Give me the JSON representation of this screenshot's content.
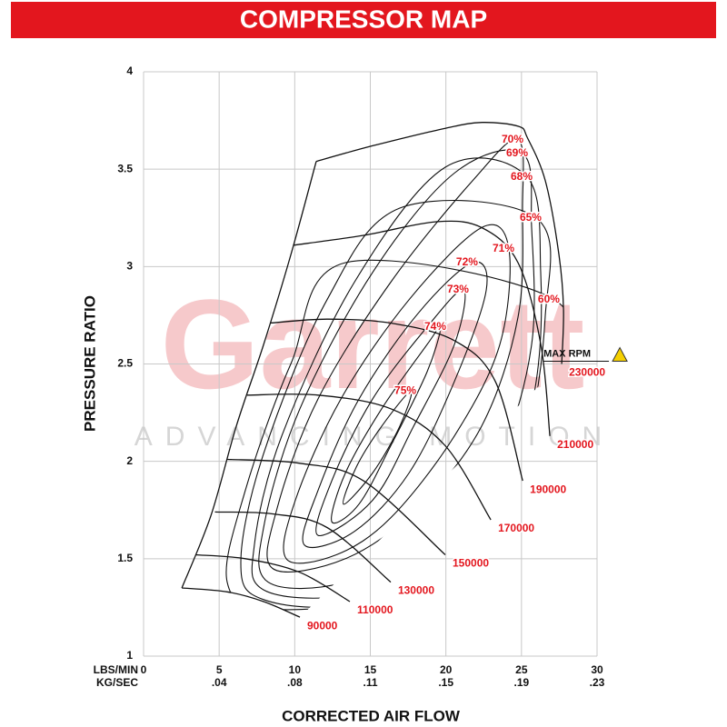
{
  "chart_data": {
    "type": "compressor-map",
    "title": "COMPRESSOR MAP",
    "x_label": "CORRECTED AIR FLOW",
    "y_label": "PRESSURE RATIO",
    "x_row_label": "LBS/MIN",
    "x2_row_label": "KG/SEC",
    "watermark": "Garrett",
    "watermark_tagline": "ADVANCING MOTION",
    "max_speed_note": "MAX RPM",
    "xlim": [
      0,
      30
    ],
    "ylim": [
      1,
      4
    ],
    "xticks": [
      0,
      5,
      10,
      15,
      20,
      25,
      30
    ],
    "xticks2": [
      {
        "value": 5,
        "label": ".04"
      },
      {
        "value": 10,
        "label": ".08"
      },
      {
        "value": 15,
        "label": ".11"
      },
      {
        "value": 20,
        "label": ".15"
      },
      {
        "value": 25,
        "label": ".19"
      },
      {
        "value": 30,
        "label": ".23"
      }
    ],
    "yticks": [
      1,
      1.5,
      2,
      2.5,
      3,
      3.5,
      4
    ],
    "grid": true,
    "line_color": "#111111",
    "label_color": "#e3161e",
    "surge_line": {
      "x": [
        2.53,
        4.45,
        6.13,
        7.94,
        9.74,
        11.42
      ],
      "y": [
        1.35,
        1.72,
        2.18,
        2.6,
        3.06,
        3.54
      ]
    },
    "speed_lines": [
      {
        "name": "90000",
        "x": [
          2.53,
          5.53,
          7.94,
          10.34
        ],
        "y": [
          1.35,
          1.33,
          1.28,
          1.2
        ]
      },
      {
        "name": "110000",
        "x": [
          3.43,
          6.73,
          10.34,
          13.65
        ],
        "y": [
          1.52,
          1.5,
          1.43,
          1.28
        ]
      },
      {
        "name": "130000",
        "x": [
          4.72,
          8.54,
          12.14,
          16.35
        ],
        "y": [
          1.74,
          1.73,
          1.66,
          1.38
        ]
      },
      {
        "name": "150000",
        "x": [
          5.53,
          10.34,
          14.55,
          19.96
        ],
        "y": [
          2.01,
          1.99,
          1.9,
          1.52
        ]
      },
      {
        "name": "170000",
        "x": [
          6.85,
          11.54,
          16.35,
          19.96,
          22.97
        ],
        "y": [
          2.34,
          2.34,
          2.27,
          2.08,
          1.7
        ]
      },
      {
        "name": "190000",
        "x": [
          8.36,
          12.14,
          16.35,
          20.56,
          23.27,
          25.08
        ],
        "y": [
          2.71,
          2.73,
          2.71,
          2.62,
          2.41,
          1.9
        ]
      },
      {
        "name": "210000",
        "x": [
          9.92,
          14.55,
          19.36,
          22.37,
          24.77,
          26.28,
          26.88
        ],
        "y": [
          3.11,
          3.16,
          3.23,
          3.2,
          3.02,
          2.6,
          2.13
        ]
      },
      {
        "name": "230000",
        "x": [
          11.42,
          15.15,
          19.96,
          22.4,
          24.8,
          25.4,
          26.58,
          27.48,
          27.78,
          27.66
        ],
        "y": [
          3.54,
          3.62,
          3.71,
          3.74,
          3.72,
          3.66,
          3.44,
          3.06,
          2.78,
          2.5
        ]
      }
    ],
    "efficiency_islands": [
      {
        "name": "75%",
        "x": [
          13.23,
          14.07,
          15.75,
          17.68,
          16.95,
          15.15
        ],
        "y": [
          1.78,
          1.97,
          2.18,
          2.36,
          2.18,
          1.94
        ]
      },
      {
        "name": "74%",
        "x": [
          12.45,
          13.35,
          15.75,
          18.76,
          19.66,
          18.76,
          16.35,
          14.25
        ],
        "y": [
          1.69,
          1.94,
          2.27,
          2.6,
          2.69,
          2.46,
          2.08,
          1.78
        ]
      },
      {
        "name": "73%",
        "x": [
          11.54,
          12.45,
          15.15,
          18.76,
          21.16,
          20.56,
          17.86,
          15.15
        ],
        "y": [
          1.62,
          1.9,
          2.32,
          2.69,
          2.88,
          2.6,
          2.18,
          1.8
        ]
      },
      {
        "name": "72%",
        "x": [
          10.64,
          11.54,
          14.25,
          18.16,
          21.76,
          22.67,
          20.56,
          17.56,
          13.95
        ],
        "y": [
          1.57,
          1.85,
          2.32,
          2.76,
          3.02,
          2.88,
          2.41,
          1.94,
          1.64
        ]
      },
      {
        "name": "71%",
        "x": [
          9.44,
          10.04,
          13.05,
          17.56,
          22.36,
          24.17,
          23.57,
          20.56,
          16.35,
          12.75
        ],
        "y": [
          1.5,
          1.8,
          2.32,
          2.83,
          3.2,
          3.09,
          2.6,
          2.13,
          1.71,
          1.52
        ]
      },
      {
        "name": "70%",
        "x": [
          8.54,
          8.84,
          11.54,
          16.35,
          21.76,
          24.77,
          25.07,
          24.77,
          22.36,
          18.16,
          13.35
        ],
        "y": [
          1.45,
          1.76,
          2.32,
          2.92,
          3.44,
          3.65,
          3.3,
          2.74,
          2.18,
          1.76,
          1.5
        ]
      },
      {
        "name": "69%",
        "x": [
          8.24,
          7.94,
          10.34,
          15.15,
          20.56,
          25.07,
          25.67,
          25.67,
          23.57,
          19.36,
          13.35
        ],
        "y": [
          1.38,
          1.66,
          2.27,
          2.97,
          3.48,
          3.58,
          3.2,
          2.6,
          2.04,
          1.62,
          1.38
        ]
      },
      {
        "name": "68%",
        "x": [
          7.94,
          7.33,
          9.14,
          13.95,
          19.96,
          25.37,
          26.27,
          25.97,
          24.17,
          19.96,
          13.35
        ],
        "y": [
          1.34,
          1.57,
          2.13,
          2.92,
          3.51,
          3.46,
          2.97,
          2.41,
          1.9,
          1.48,
          1.31
        ]
      },
      {
        "name": "65%",
        "x": [
          7.94,
          6.43,
          7.94,
          12.14,
          16.95,
          25.97,
          26.57,
          25.07,
          21.16,
          13.95
        ],
        "y": [
          1.29,
          1.48,
          2.04,
          2.83,
          3.3,
          3.25,
          2.74,
          2.04,
          1.52,
          1.27
        ]
      },
      {
        "name": "60%",
        "x": [
          8.54,
          5.53,
          6.73,
          9.74,
          13.35,
          27.17,
          27.17,
          24.77,
          18.16
        ],
        "y": [
          1.24,
          1.38,
          1.85,
          2.5,
          3.02,
          2.83,
          2.36,
          1.76,
          1.34
        ]
      }
    ]
  }
}
